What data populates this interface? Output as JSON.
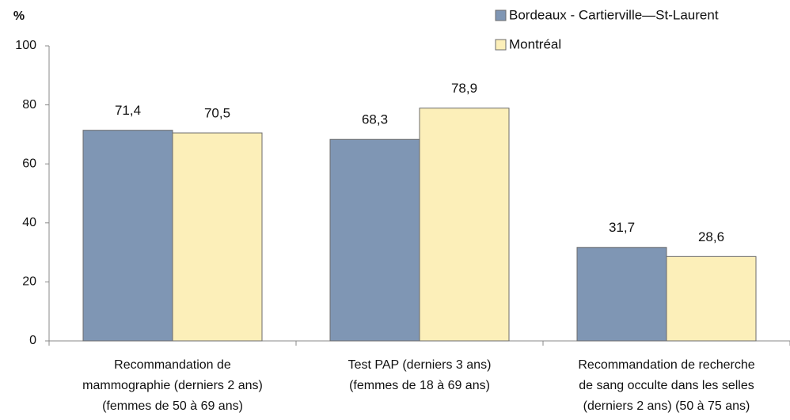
{
  "chart_data": {
    "type": "bar",
    "ylabel": "%",
    "categories": [
      [
        "Recommandation de",
        "mammographie (derniers 2 ans)",
        "(femmes de 50 à 69 ans)"
      ],
      [
        "Test PAP (derniers 3 ans)",
        "(femmes de 18 à 69 ans)"
      ],
      [
        "Recommandation de recherche",
        "de sang occulte dans les selles",
        "(derniers 2 ans) (50 à 75 ans)"
      ]
    ],
    "series": [
      {
        "name": "Bordeaux - Cartierville—St-Laurent",
        "color": "#7f96b4",
        "values": [
          71.4,
          68.3,
          31.7
        ],
        "value_labels": [
          "71,4",
          "68,3",
          "31,7"
        ]
      },
      {
        "name": "Montréal",
        "color": "#fcefb9",
        "values": [
          70.5,
          78.9,
          28.6
        ],
        "value_labels": [
          "70,5",
          "78,9",
          "28,6"
        ]
      }
    ],
    "ylim": [
      0,
      100
    ],
    "yticks": [
      0,
      20,
      40,
      60,
      80,
      100
    ],
    "grid": false,
    "legend": "top-right"
  }
}
